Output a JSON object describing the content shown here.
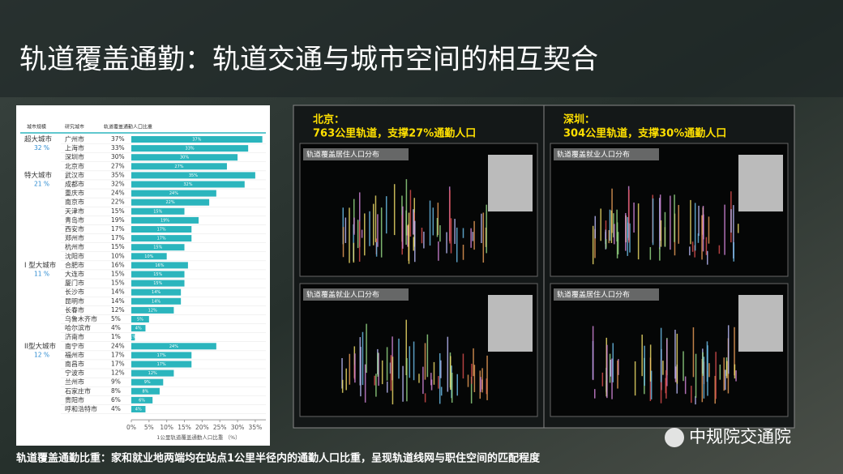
{
  "header": {
    "title": "轨道覆盖通勤：轨道交通与城市空间的相互契合"
  },
  "chart_data": {
    "type": "bar",
    "columns": [
      "城市规模",
      "研究城市",
      "轨道覆盖通勤人口比重"
    ],
    "groups": [
      {
        "name": "超大城市",
        "share": "32 %",
        "categories": [
          "广州市",
          "上海市",
          "深圳市",
          "北京市"
        ],
        "values": [
          37,
          33,
          30,
          27
        ],
        "value_labels": [
          "37%",
          "33%",
          "30%",
          "27%"
        ]
      },
      {
        "name": "特大城市",
        "share": "21 %",
        "categories": [
          "武汉市",
          "成都市",
          "重庆市",
          "南京市",
          "天津市",
          "青岛市",
          "西安市",
          "郑州市",
          "杭州市",
          "沈阳市"
        ],
        "values": [
          35,
          32,
          24,
          22,
          15,
          19,
          17,
          17,
          15,
          10
        ],
        "value_labels": [
          "35%",
          "32%",
          "24%",
          "22%",
          "15%",
          "19%",
          "17%",
          "17%",
          "15%",
          "10%"
        ]
      },
      {
        "name": "I 型大城市",
        "share": "11 %",
        "categories": [
          "合肥市",
          "大连市",
          "厦门市",
          "长沙市",
          "昆明市",
          "长春市",
          "乌鲁木齐市",
          "哈尔滨市",
          "济南市"
        ],
        "values": [
          16,
          15,
          15,
          14,
          14,
          12,
          5,
          4,
          1
        ],
        "value_labels": [
          "16%",
          "15%",
          "15%",
          "14%",
          "14%",
          "12%",
          "5%",
          "4%",
          "1%"
        ]
      },
      {
        "name": "II型大城市",
        "share": "12 %",
        "categories": [
          "南宁市",
          "福州市",
          "南昌市",
          "宁波市",
          "兰州市",
          "石家庄市",
          "贵阳市",
          "呼和浩特市"
        ],
        "values": [
          24,
          17,
          17,
          12,
          9,
          8,
          6,
          4
        ],
        "value_labels": [
          "24%",
          "17%",
          "17%",
          "12%",
          "9%",
          "8%",
          "6%",
          "4%"
        ]
      }
    ],
    "color": "#2bb5bd",
    "xlabel": "1公里轨道覆盖通勤人口比重 （%）",
    "xlim": [
      0,
      38
    ],
    "xticks": [
      {
        "value": 0,
        "label": "0%"
      },
      {
        "value": 5,
        "label": "5%"
      },
      {
        "value": 10,
        "label": "10%"
      },
      {
        "value": 15,
        "label": "15%"
      },
      {
        "value": 20,
        "label": "20%"
      },
      {
        "value": 25,
        "label": "25%"
      },
      {
        "value": 30,
        "label": "30%"
      },
      {
        "value": 35,
        "label": "35%"
      }
    ]
  },
  "panels": [
    {
      "city": "北京：",
      "summary": "763公里轨道，支撑27%通勤人口",
      "maps": [
        "轨道覆盖居住人口分布",
        "轨道覆盖就业人口分布"
      ]
    },
    {
      "city": "深圳：",
      "summary": "304公里轨道，支撑30%通勤人口",
      "maps": [
        "轨道覆盖就业人口分布",
        "轨道覆盖居住人口分布"
      ]
    }
  ],
  "footer": {
    "note": "轨道覆盖通勤比重：家和就业地两端均在站点1公里半径内的通勤人口比重，呈现轨道线网与职住空间的匹配程度",
    "brand": "中规院交通院"
  }
}
